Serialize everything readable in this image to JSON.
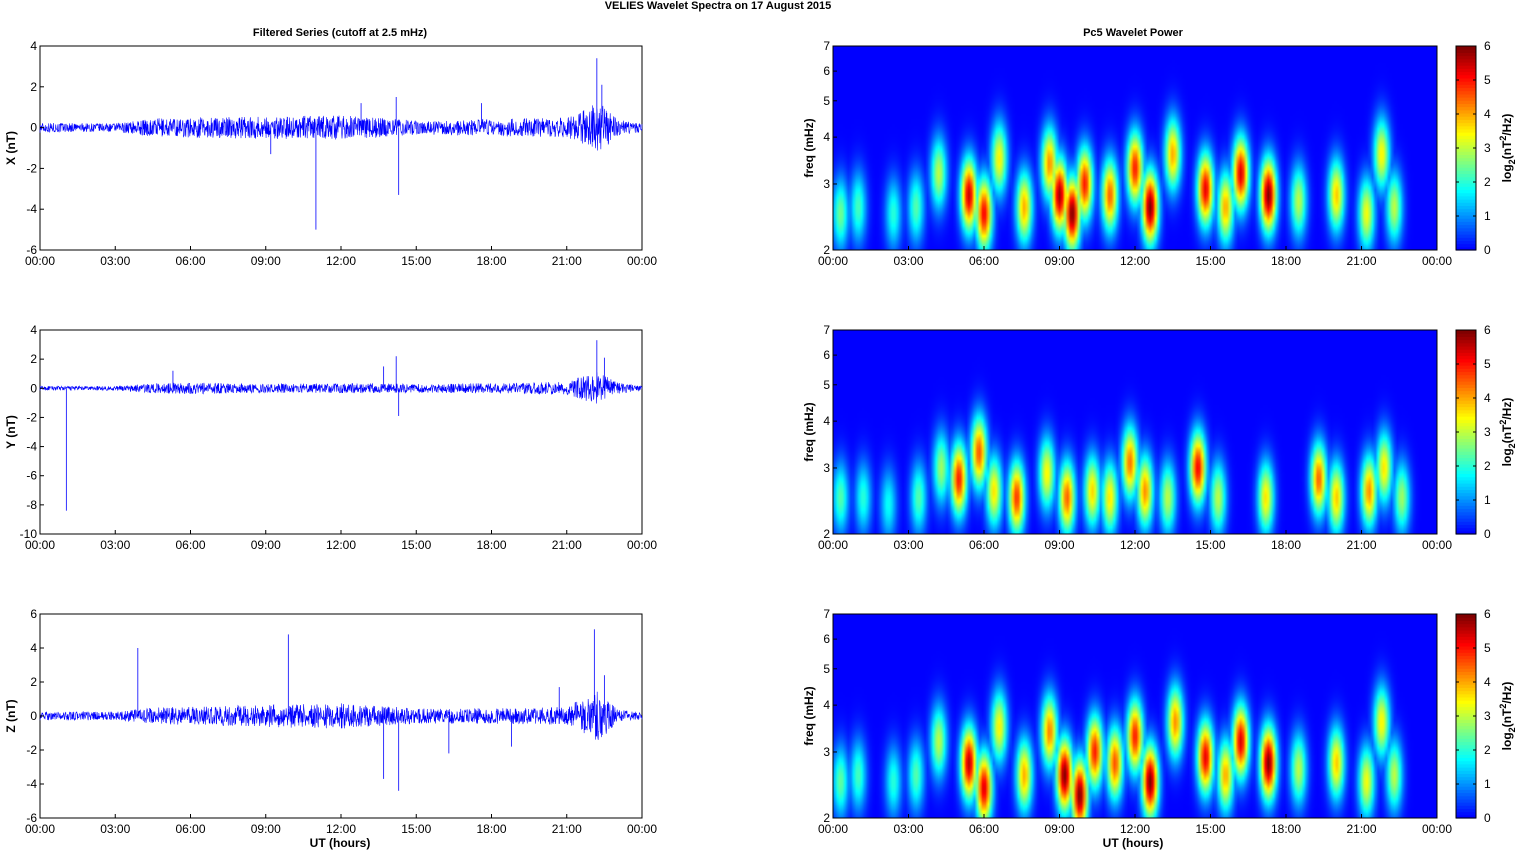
{
  "suptitle": "VELIES Wavelet Spectra on 17 August    2015",
  "left_title": "Filtered Series (cutoff at 2.5 mHz)",
  "right_title": "Pc5 Wavelet Power",
  "xlabel": "UT (hours)",
  "x_ticks": [
    "00:00",
    "03:00",
    "06:00",
    "09:00",
    "12:00",
    "15:00",
    "18:00",
    "21:00",
    "00:00"
  ],
  "colorbar": {
    "label_prefix": "log",
    "label_sub": "2",
    "label_mid": "(nT",
    "label_sup": "2",
    "label_suffix": "/Hz)",
    "ticks": [
      "0",
      "1",
      "2",
      "3",
      "4",
      "5",
      "6"
    ],
    "colormap": "jet"
  },
  "freq_label": "freq (mHz)",
  "freq_ticks": [
    "2",
    "3",
    "4",
    "5",
    "6",
    "7"
  ],
  "colors": {
    "series": "#0000ff",
    "axis": "#000000",
    "background_low": "#00008f"
  },
  "chart_data": [
    {
      "type": "line",
      "ylabel": "X (nT)",
      "xlim": [
        0,
        24
      ],
      "ylim": [
        -6,
        4
      ],
      "y_ticks": [
        "4",
        "2",
        "0",
        "-2",
        "-4",
        "-6"
      ],
      "spikes": [
        {
          "x": 11.0,
          "y": -5.0
        },
        {
          "x": 14.3,
          "y": -3.3
        },
        {
          "x": 22.2,
          "y": 3.4
        },
        {
          "x": 22.4,
          "y": 2.1
        },
        {
          "x": 12.8,
          "y": 1.2
        },
        {
          "x": 14.2,
          "y": 1.5
        },
        {
          "x": 17.6,
          "y": 1.2
        },
        {
          "x": 9.2,
          "y": -1.3
        }
      ],
      "activity": [
        [
          0,
          0.25
        ],
        [
          3,
          0.2
        ],
        [
          4.5,
          0.45
        ],
        [
          6,
          0.5
        ],
        [
          9,
          0.55
        ],
        [
          12,
          0.6
        ],
        [
          15,
          0.35
        ],
        [
          17.5,
          0.4
        ],
        [
          21,
          0.5
        ],
        [
          22.3,
          1.3
        ],
        [
          23,
          0.4
        ],
        [
          24,
          0.2
        ]
      ]
    },
    {
      "type": "line",
      "ylabel": "Y (nT)",
      "xlim": [
        0,
        24
      ],
      "ylim": [
        -10,
        4
      ],
      "y_ticks": [
        "4",
        "2",
        "0",
        "-2",
        "-4",
        "-6",
        "-8",
        "-10"
      ],
      "spikes": [
        {
          "x": 1.05,
          "y": -8.4
        },
        {
          "x": 14.3,
          "y": -1.9
        },
        {
          "x": 14.2,
          "y": 2.2
        },
        {
          "x": 22.2,
          "y": 3.3
        },
        {
          "x": 22.5,
          "y": 2.1
        },
        {
          "x": 5.3,
          "y": 1.2
        },
        {
          "x": 13.7,
          "y": 1.5
        }
      ],
      "activity": [
        [
          0,
          0.15
        ],
        [
          3,
          0.15
        ],
        [
          4.5,
          0.35
        ],
        [
          6,
          0.4
        ],
        [
          9,
          0.3
        ],
        [
          12,
          0.35
        ],
        [
          15,
          0.3
        ],
        [
          18,
          0.35
        ],
        [
          21,
          0.45
        ],
        [
          22.3,
          1.2
        ],
        [
          23,
          0.4
        ],
        [
          24,
          0.15
        ]
      ]
    },
    {
      "type": "line",
      "ylabel": "Z (nT)",
      "xlim": [
        0,
        24
      ],
      "ylim": [
        -6,
        6
      ],
      "y_ticks": [
        "6",
        "4",
        "2",
        "0",
        "-2",
        "-4",
        "-6"
      ],
      "spikes": [
        {
          "x": 3.9,
          "y": 4.0
        },
        {
          "x": 9.9,
          "y": 4.8
        },
        {
          "x": 13.7,
          "y": -3.7
        },
        {
          "x": 14.3,
          "y": -4.4
        },
        {
          "x": 22.1,
          "y": 5.1
        },
        {
          "x": 22.5,
          "y": 2.4
        },
        {
          "x": 16.3,
          "y": -2.2
        },
        {
          "x": 18.8,
          "y": -1.8
        },
        {
          "x": 20.7,
          "y": 1.7
        }
      ],
      "activity": [
        [
          0,
          0.25
        ],
        [
          3,
          0.25
        ],
        [
          4.5,
          0.5
        ],
        [
          6,
          0.55
        ],
        [
          9,
          0.65
        ],
        [
          12,
          0.75
        ],
        [
          15,
          0.45
        ],
        [
          18,
          0.45
        ],
        [
          21,
          0.55
        ],
        [
          22.3,
          1.5
        ],
        [
          23,
          0.4
        ],
        [
          24,
          0.2
        ]
      ]
    },
    {
      "type": "heatmap",
      "ylabel": "freq (mHz)",
      "xlim": [
        0,
        24
      ],
      "ylim": [
        2,
        7
      ],
      "y_scale": "log",
      "zlim": [
        0,
        6
      ],
      "blobs": [
        {
          "t": 0.3,
          "f": 2.5,
          "a": 2.5
        },
        {
          "t": 1.0,
          "f": 2.6,
          "a": 2.2
        },
        {
          "t": 2.4,
          "f": 2.5,
          "a": 2.0
        },
        {
          "t": 3.3,
          "f": 2.6,
          "a": 2.3
        },
        {
          "t": 4.2,
          "f": 3.2,
          "a": 3.0
        },
        {
          "t": 5.4,
          "f": 2.8,
          "a": 5.5
        },
        {
          "t": 6.0,
          "f": 2.5,
          "a": 5.2
        },
        {
          "t": 6.6,
          "f": 3.5,
          "a": 3.5
        },
        {
          "t": 7.6,
          "f": 2.6,
          "a": 4.0
        },
        {
          "t": 8.6,
          "f": 3.4,
          "a": 4.2
        },
        {
          "t": 9.0,
          "f": 2.8,
          "a": 5.8
        },
        {
          "t": 9.5,
          "f": 2.5,
          "a": 6.0
        },
        {
          "t": 10.0,
          "f": 3.0,
          "a": 5.0
        },
        {
          "t": 11.0,
          "f": 2.8,
          "a": 4.5
        },
        {
          "t": 12.0,
          "f": 3.3,
          "a": 5.0
        },
        {
          "t": 12.6,
          "f": 2.6,
          "a": 6.0
        },
        {
          "t": 13.5,
          "f": 3.6,
          "a": 4.0
        },
        {
          "t": 14.8,
          "f": 2.9,
          "a": 5.3
        },
        {
          "t": 15.6,
          "f": 2.6,
          "a": 4.0
        },
        {
          "t": 16.2,
          "f": 3.2,
          "a": 5.4
        },
        {
          "t": 17.3,
          "f": 2.8,
          "a": 6.0
        },
        {
          "t": 18.5,
          "f": 2.7,
          "a": 3.0
        },
        {
          "t": 20.0,
          "f": 2.8,
          "a": 3.8
        },
        {
          "t": 21.2,
          "f": 2.5,
          "a": 3.4
        },
        {
          "t": 21.8,
          "f": 3.6,
          "a": 3.5
        },
        {
          "t": 22.3,
          "f": 2.6,
          "a": 3.0
        }
      ]
    },
    {
      "type": "heatmap",
      "ylabel": "freq (mHz)",
      "xlim": [
        0,
        24
      ],
      "ylim": [
        2,
        7
      ],
      "y_scale": "log",
      "zlim": [
        0,
        6
      ],
      "blobs": [
        {
          "t": 0.3,
          "f": 2.5,
          "a": 2.3
        },
        {
          "t": 1.2,
          "f": 2.5,
          "a": 2.0
        },
        {
          "t": 2.2,
          "f": 2.4,
          "a": 1.8
        },
        {
          "t": 3.4,
          "f": 2.5,
          "a": 2.3
        },
        {
          "t": 4.3,
          "f": 3.0,
          "a": 2.8
        },
        {
          "t": 5.0,
          "f": 2.8,
          "a": 5.0
        },
        {
          "t": 5.8,
          "f": 3.3,
          "a": 4.6
        },
        {
          "t": 6.4,
          "f": 2.6,
          "a": 3.6
        },
        {
          "t": 7.3,
          "f": 2.5,
          "a": 4.8
        },
        {
          "t": 8.5,
          "f": 2.9,
          "a": 3.5
        },
        {
          "t": 9.3,
          "f": 2.5,
          "a": 4.5
        },
        {
          "t": 10.3,
          "f": 2.6,
          "a": 3.7
        },
        {
          "t": 11.0,
          "f": 2.5,
          "a": 3.6
        },
        {
          "t": 11.8,
          "f": 3.1,
          "a": 4.4
        },
        {
          "t": 12.4,
          "f": 2.6,
          "a": 4.2
        },
        {
          "t": 13.3,
          "f": 2.5,
          "a": 3.0
        },
        {
          "t": 14.5,
          "f": 3.0,
          "a": 5.2
        },
        {
          "t": 15.3,
          "f": 2.5,
          "a": 3.0
        },
        {
          "t": 17.2,
          "f": 2.5,
          "a": 3.6
        },
        {
          "t": 19.3,
          "f": 2.8,
          "a": 4.5
        },
        {
          "t": 20.0,
          "f": 2.5,
          "a": 3.8
        },
        {
          "t": 21.3,
          "f": 2.6,
          "a": 4.2
        },
        {
          "t": 21.9,
          "f": 3.0,
          "a": 3.6
        },
        {
          "t": 22.6,
          "f": 2.5,
          "a": 2.8
        }
      ]
    },
    {
      "type": "heatmap",
      "ylabel": "freq (mHz)",
      "xlim": [
        0,
        24
      ],
      "ylim": [
        2,
        7
      ],
      "y_scale": "log",
      "zlim": [
        0,
        6
      ],
      "blobs": [
        {
          "t": 0.3,
          "f": 2.5,
          "a": 2.4
        },
        {
          "t": 1.0,
          "f": 2.6,
          "a": 2.2
        },
        {
          "t": 2.4,
          "f": 2.5,
          "a": 2.0
        },
        {
          "t": 3.3,
          "f": 2.6,
          "a": 2.3
        },
        {
          "t": 4.2,
          "f": 3.2,
          "a": 3.0
        },
        {
          "t": 5.4,
          "f": 2.8,
          "a": 5.6
        },
        {
          "t": 6.0,
          "f": 2.4,
          "a": 5.4
        },
        {
          "t": 6.6,
          "f": 3.5,
          "a": 3.5
        },
        {
          "t": 7.6,
          "f": 2.6,
          "a": 4.0
        },
        {
          "t": 8.6,
          "f": 3.4,
          "a": 4.3
        },
        {
          "t": 9.2,
          "f": 2.6,
          "a": 6.0
        },
        {
          "t": 9.8,
          "f": 2.3,
          "a": 6.0
        },
        {
          "t": 10.4,
          "f": 3.0,
          "a": 5.0
        },
        {
          "t": 11.2,
          "f": 2.8,
          "a": 4.6
        },
        {
          "t": 12.0,
          "f": 3.3,
          "a": 5.0
        },
        {
          "t": 12.6,
          "f": 2.5,
          "a": 6.0
        },
        {
          "t": 13.6,
          "f": 3.6,
          "a": 4.2
        },
        {
          "t": 14.8,
          "f": 2.9,
          "a": 5.3
        },
        {
          "t": 15.6,
          "f": 2.6,
          "a": 4.0
        },
        {
          "t": 16.2,
          "f": 3.2,
          "a": 5.4
        },
        {
          "t": 17.3,
          "f": 2.8,
          "a": 6.0
        },
        {
          "t": 18.5,
          "f": 2.7,
          "a": 3.0
        },
        {
          "t": 20.0,
          "f": 2.8,
          "a": 3.8
        },
        {
          "t": 21.2,
          "f": 2.5,
          "a": 3.4
        },
        {
          "t": 21.8,
          "f": 3.6,
          "a": 3.5
        },
        {
          "t": 22.3,
          "f": 2.6,
          "a": 3.0
        }
      ]
    }
  ]
}
